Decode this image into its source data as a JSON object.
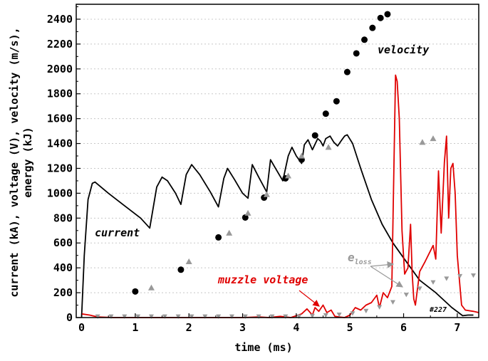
{
  "chart_data": {
    "type": "line",
    "xlabel": "time (ms)",
    "ylabel_line1": "current (kA), voltage (V), velocity (m/s),",
    "ylabel_line2": "energy (kJ)",
    "xlim": [
      -0.1,
      7.4
    ],
    "ylim": [
      0,
      2520
    ],
    "x_ticks": [
      0,
      1,
      2,
      3,
      4,
      5,
      6,
      7
    ],
    "y_ticks": [
      0,
      200,
      400,
      600,
      800,
      1000,
      1200,
      1400,
      1600,
      1800,
      2000,
      2200,
      2400
    ],
    "grid": "horizontal dotted",
    "colors": {
      "current": "#000000",
      "muzzle_voltage": "#e00000",
      "velocity": "#000000",
      "eloss": "#999999",
      "grid": "#c8c8c8"
    },
    "annotations": {
      "current": "current",
      "muzzle_voltage": "muzzle voltage",
      "velocity": "velocity",
      "eloss_base": "e",
      "eloss_sub": "loss",
      "shot": "#227"
    },
    "series": [
      {
        "name": "current",
        "style": "line",
        "x": [
          0,
          0.05,
          0.12,
          0.2,
          0.25,
          0.5,
          0.8,
          1.1,
          1.27,
          1.4,
          1.5,
          1.6,
          1.75,
          1.85,
          1.95,
          2.05,
          2.2,
          2.4,
          2.55,
          2.65,
          2.72,
          2.85,
          3.0,
          3.1,
          3.18,
          3.3,
          3.45,
          3.52,
          3.6,
          3.75,
          3.85,
          3.92,
          4.0,
          4.1,
          4.15,
          4.22,
          4.3,
          4.4,
          4.45,
          4.5,
          4.55,
          4.63,
          4.7,
          4.77,
          4.85,
          4.9,
          4.95,
          5.05,
          5.2,
          5.4,
          5.6,
          5.8,
          6.0,
          6.3,
          6.6,
          6.9,
          7.1,
          7.2,
          7.3
        ],
        "y": [
          0,
          500,
          950,
          1080,
          1090,
          1000,
          900,
          800,
          720,
          1050,
          1130,
          1100,
          1000,
          910,
          1150,
          1230,
          1150,
          1010,
          890,
          1120,
          1200,
          1110,
          1000,
          960,
          1230,
          1130,
          1010,
          1270,
          1210,
          1100,
          1300,
          1370,
          1300,
          1240,
          1390,
          1430,
          1350,
          1440,
          1420,
          1380,
          1440,
          1460,
          1410,
          1380,
          1430,
          1460,
          1470,
          1400,
          1200,
          950,
          750,
          600,
          480,
          300,
          200,
          80,
          15,
          20,
          20
        ]
      },
      {
        "name": "muzzle voltage",
        "style": "line",
        "x": [
          0,
          0.15,
          0.3,
          0.6,
          1.0,
          1.5,
          2.0,
          2.5,
          3.0,
          3.3,
          3.5,
          3.7,
          3.9,
          4.1,
          4.2,
          4.3,
          4.35,
          4.42,
          4.5,
          4.57,
          4.65,
          4.72,
          4.8,
          4.9,
          5.0,
          5.1,
          5.2,
          5.3,
          5.4,
          5.5,
          5.55,
          5.62,
          5.7,
          5.78,
          5.85,
          5.88,
          5.92,
          5.97,
          6.02,
          6.08,
          6.13,
          6.16,
          6.19,
          6.22,
          6.3,
          6.4,
          6.55,
          6.6,
          6.65,
          6.7,
          6.76,
          6.8,
          6.84,
          6.88,
          6.92,
          6.96,
          7.0,
          7.04,
          7.08,
          7.15,
          7.3,
          7.4
        ],
        "y": [
          30,
          20,
          5,
          0,
          0,
          0,
          0,
          0,
          0,
          5,
          0,
          10,
          0,
          30,
          70,
          20,
          80,
          50,
          100,
          40,
          60,
          10,
          5,
          0,
          20,
          80,
          60,
          100,
          120,
          180,
          80,
          200,
          160,
          250,
          1950,
          1900,
          1600,
          700,
          350,
          400,
          750,
          350,
          150,
          100,
          370,
          450,
          580,
          470,
          1180,
          680,
          1250,
          1460,
          800,
          1200,
          1240,
          1000,
          500,
          300,
          100,
          60,
          50,
          40
        ]
      },
      {
        "name": "velocity",
        "style": "marker-circle",
        "x": [
          1.0,
          1.85,
          2.55,
          3.05,
          3.4,
          3.8,
          4.1,
          4.35,
          4.55,
          4.75,
          4.95,
          5.12,
          5.27,
          5.42,
          5.57,
          5.7
        ],
        "y": [
          210,
          385,
          645,
          805,
          965,
          1120,
          1270,
          1465,
          1640,
          1740,
          1975,
          2125,
          2235,
          2330,
          2410,
          2440
        ]
      },
      {
        "name": "eloss",
        "style": "marker-triangle-up",
        "x": [
          1.3,
          2.0,
          2.75,
          3.1,
          3.45,
          3.85,
          4.1,
          4.6
        ],
        "y": [
          240,
          450,
          680,
          840,
          990,
          1140,
          1300,
          1370
        ]
      },
      {
        "name": "eloss-late",
        "style": "marker-triangle-up",
        "x": [
          6.35,
          6.55
        ],
        "y": [
          1410,
          1440
        ]
      },
      {
        "name": "eloss-low",
        "style": "marker-triangle-down",
        "x": [
          0.3,
          0.55,
          0.8,
          1.05,
          1.3,
          1.55,
          1.8,
          2.05,
          2.3,
          2.55,
          2.8,
          3.05,
          3.3,
          3.55,
          3.8,
          4.05,
          4.3,
          4.55,
          4.8,
          5.05,
          5.3,
          5.55,
          5.8,
          6.05,
          6.3,
          6.55,
          6.8,
          7.05,
          7.3
        ],
        "y": [
          5,
          5,
          5,
          5,
          5,
          5,
          5,
          5,
          5,
          5,
          5,
          5,
          5,
          5,
          5,
          5,
          10,
          15,
          20,
          30,
          50,
          80,
          120,
          180,
          230,
          280,
          310,
          330,
          335
        ]
      }
    ]
  }
}
